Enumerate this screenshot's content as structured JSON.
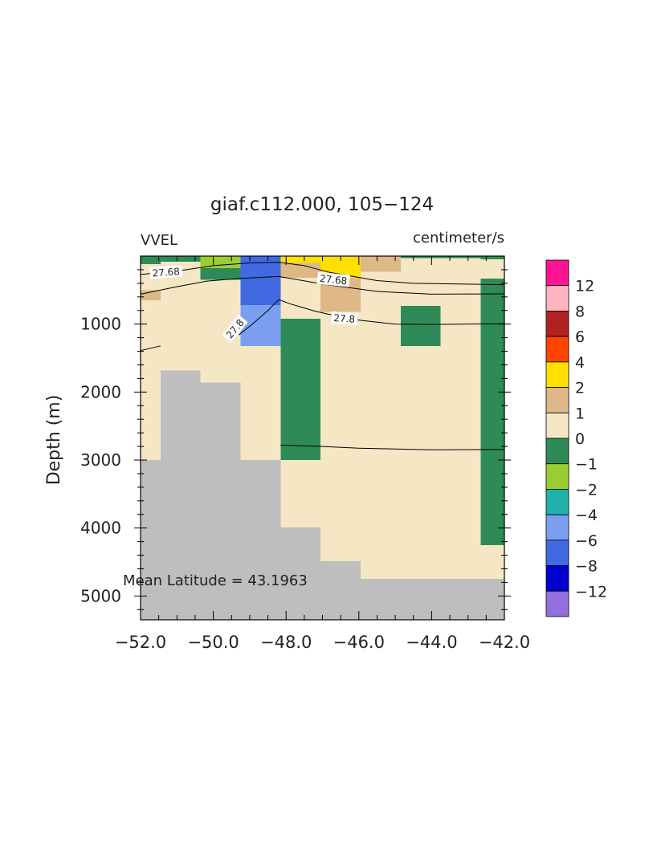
{
  "chart_data": {
    "type": "heatmap",
    "title": "giaf.c112.000, 105−124",
    "variable": "VVEL",
    "units": "centimeter/s",
    "ylabel": "Depth (m)",
    "xlabel": "",
    "xlim": [
      -52.0,
      -42.0
    ],
    "ylim": [
      5350,
      0
    ],
    "xticks": [
      -52.0,
      -50.0,
      -48.0,
      -46.0,
      -44.0,
      -42.0
    ],
    "xtick_labels": [
      "−52.0",
      "−50.0",
      "−48.0",
      "−46.0",
      "−44.0",
      "−42.0"
    ],
    "yticks": [
      1000,
      2000,
      3000,
      4000,
      5000
    ],
    "ytick_labels": [
      "1000",
      "2000",
      "3000",
      "4000",
      "5000"
    ],
    "annotation": "Mean Latitude = 43.1963",
    "colors": {
      "land": "#bebebe",
      "c_-12": "#9370db",
      "c_-8": "#0000cd",
      "c_-6": "#4169e1",
      "c_-4": "#7b9ef0",
      "c_-2": "#20b2aa",
      "c_-1": "#9acd32",
      "c_0": "#2e8b57",
      "c_1": "#f5e6c4",
      "c_2": "#deb887",
      "c_4": "#ffe000",
      "c_6": "#ff4500",
      "c_8": "#b22222",
      "c_12": "#ffb6c1",
      "c_top": "#ff1493"
    },
    "colorbar": {
      "boxes": [
        "c_top",
        "c_12",
        "c_8",
        "c_6",
        "c_4",
        "c_2",
        "c_1",
        "c_0",
        "c_-1",
        "c_-2",
        "c_-4",
        "c_-6",
        "c_-8",
        "c_-12"
      ],
      "labels": [
        "12",
        "8",
        "6",
        "4",
        "2",
        "1",
        "0",
        "−1",
        "−2",
        "−4",
        "−6",
        "−8",
        "−12"
      ]
    },
    "cells": [
      {
        "x0": -52.0,
        "x1": -42.0,
        "z0": 0,
        "z1": 5350,
        "c": "c_1"
      },
      {
        "x0": -52.0,
        "x1": -51.45,
        "z0": 0,
        "z1": 120,
        "c": "c_0"
      },
      {
        "x0": -52.0,
        "x1": -51.45,
        "z0": 500,
        "z1": 650,
        "c": "c_2"
      },
      {
        "x0": -51.45,
        "x1": -50.35,
        "z0": 0,
        "z1": 80,
        "c": "c_0"
      },
      {
        "x0": -50.35,
        "x1": -49.25,
        "z0": 0,
        "z1": 180,
        "c": "c_-1"
      },
      {
        "x0": -50.35,
        "x1": -49.25,
        "z0": 180,
        "z1": 350,
        "c": "c_0"
      },
      {
        "x0": -49.25,
        "x1": -48.15,
        "z0": 0,
        "z1": 720,
        "c": "c_-6"
      },
      {
        "x0": -49.25,
        "x1": -48.15,
        "z0": 720,
        "z1": 1320,
        "c": "c_-4"
      },
      {
        "x0": -48.15,
        "x1": -47.05,
        "z0": 0,
        "z1": 100,
        "c": "c_4"
      },
      {
        "x0": -48.15,
        "x1": -47.05,
        "z0": 100,
        "z1": 320,
        "c": "c_2"
      },
      {
        "x0": -48.15,
        "x1": -47.05,
        "z0": 920,
        "z1": 3000,
        "c": "c_0"
      },
      {
        "x0": -47.05,
        "x1": -45.95,
        "z0": 0,
        "z1": 320,
        "c": "c_4"
      },
      {
        "x0": -47.05,
        "x1": -45.95,
        "z0": 320,
        "z1": 820,
        "c": "c_2"
      },
      {
        "x0": -45.95,
        "x1": -44.85,
        "z0": 0,
        "z1": 230,
        "c": "c_2"
      },
      {
        "x0": -44.85,
        "x1": -43.75,
        "z0": 730,
        "z1": 1320,
        "c": "c_0"
      },
      {
        "x0": -44.85,
        "x1": -42.65,
        "z0": 0,
        "z1": 30,
        "c": "c_0"
      },
      {
        "x0": -42.65,
        "x1": -42.0,
        "z0": 0,
        "z1": 50,
        "c": "c_0"
      },
      {
        "x0": -42.65,
        "x1": -42.0,
        "z0": 330,
        "z1": 4250,
        "c": "c_0"
      },
      {
        "x0": -52.0,
        "x1": -51.45,
        "z0": 3000,
        "z1": 5350,
        "c": "land"
      },
      {
        "x0": -51.45,
        "x1": -50.35,
        "z0": 1680,
        "z1": 5350,
        "c": "land"
      },
      {
        "x0": -50.35,
        "x1": -49.25,
        "z0": 1860,
        "z1": 5350,
        "c": "land"
      },
      {
        "x0": -49.25,
        "x1": -48.15,
        "z0": 3000,
        "z1": 5350,
        "c": "land"
      },
      {
        "x0": -48.15,
        "x1": -47.05,
        "z0": 3990,
        "z1": 5350,
        "c": "land"
      },
      {
        "x0": -47.05,
        "x1": -45.95,
        "z0": 4490,
        "z1": 5350,
        "c": "land"
      },
      {
        "x0": -45.95,
        "x1": -42.0,
        "z0": 4750,
        "z1": 5350,
        "c": "land"
      }
    ],
    "contours": [
      {
        "points": [
          [
            -52.0,
            270
          ],
          [
            -51.0,
            220
          ],
          [
            -50.0,
            140
          ],
          [
            -49.0,
            100
          ],
          [
            -48.2,
            90
          ],
          [
            -47.5,
            140
          ],
          [
            -46.8,
            240
          ],
          [
            -45.5,
            360
          ],
          [
            -44.5,
            400
          ],
          [
            -42.0,
            420
          ]
        ]
      },
      {
        "points": [
          [
            -52.0,
            560
          ],
          [
            -51.0,
            450
          ],
          [
            -50.2,
            370
          ],
          [
            -49.3,
            330
          ],
          [
            -48.2,
            300
          ],
          [
            -47.0,
            410
          ],
          [
            -45.5,
            520
          ],
          [
            -44.0,
            560
          ],
          [
            -42.0,
            555
          ]
        ]
      },
      {
        "points": [
          [
            -49.3,
            1160
          ],
          [
            -48.9,
            990
          ],
          [
            -48.5,
            800
          ],
          [
            -48.2,
            640
          ],
          [
            -47.9,
            700
          ],
          [
            -47.2,
            810
          ],
          [
            -46.2,
            930
          ],
          [
            -45.0,
            1000
          ],
          [
            -44.0,
            1005
          ],
          [
            -42.0,
            995
          ]
        ]
      },
      {
        "points": [
          [
            -52.0,
            1390
          ],
          [
            -51.45,
            1320
          ]
        ]
      },
      {
        "points": [
          [
            -48.15,
            2780
          ],
          [
            -47.0,
            2800
          ],
          [
            -46.0,
            2825
          ],
          [
            -44.0,
            2850
          ],
          [
            -42.0,
            2845
          ]
        ]
      }
    ],
    "contour_labels": [
      {
        "text": "27.68",
        "x": -51.3,
        "z": 240,
        "angle": -4
      },
      {
        "text": "27.68",
        "x": -46.7,
        "z": 350,
        "angle": 6
      },
      {
        "text": "27.8",
        "x": -49.4,
        "z": 1070,
        "angle": -50
      },
      {
        "text": "27.8",
        "x": -46.4,
        "z": 920,
        "angle": 4
      }
    ]
  }
}
